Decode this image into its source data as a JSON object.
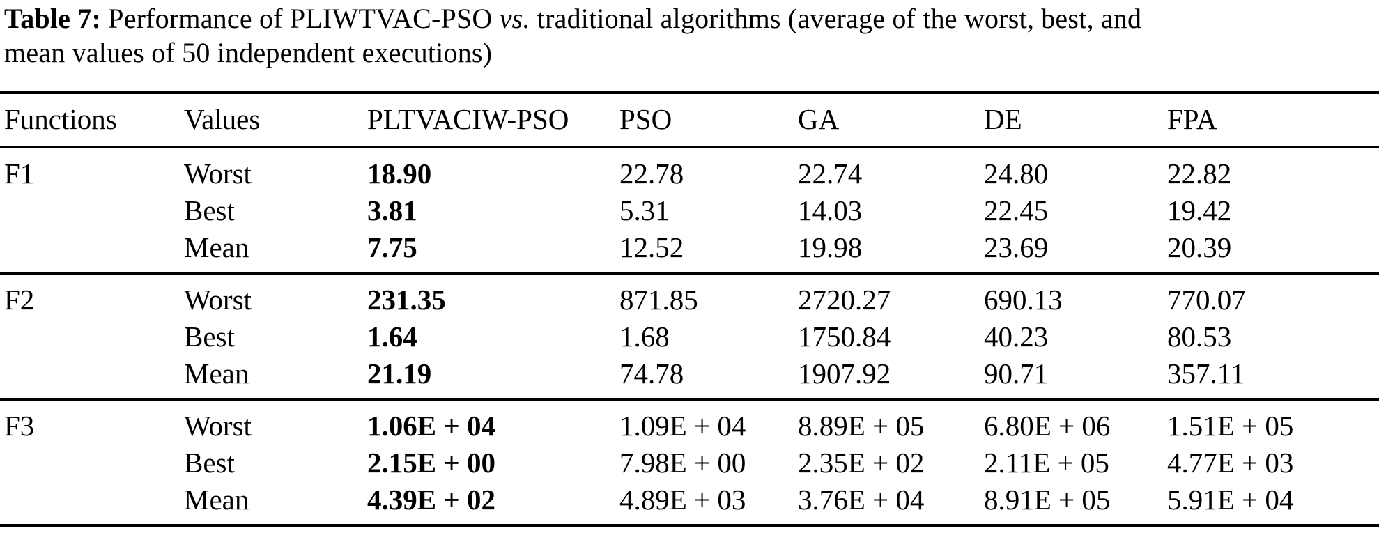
{
  "page": {
    "background_color": "#ffffff",
    "text_color": "#000000",
    "rule_color": "#000000"
  },
  "caption": {
    "segments": [
      {
        "text": "Table 7:",
        "style": "bold"
      },
      {
        "text": " Performance of PLIWTVAC-PSO ",
        "style": "normal"
      },
      {
        "text": "vs.",
        "style": "italic"
      },
      {
        "text": " traditional algorithms (average of the worst, best, and",
        "style": "normal"
      },
      {
        "style": "break"
      },
      {
        "text": "mean values of 50 independent executions)",
        "style": "normal"
      }
    ],
    "full_text": "Table 7: Performance of PLIWTVAC-PSO vs. traditional algorithms (average of the worst, best, and mean values of 50 independent executions)"
  },
  "table": {
    "columns": [
      "Functions",
      "Values",
      "PLTVACIW-PSO",
      "PSO",
      "GA",
      "DE",
      "FPA"
    ],
    "bold_column": "PLTVACIW-PSO",
    "groups": [
      {
        "function": "F1",
        "rows": [
          {
            "value_label": "Worst",
            "cells": [
              "18.90",
              "22.78",
              "22.74",
              "24.80",
              "22.82"
            ]
          },
          {
            "value_label": "Best",
            "cells": [
              "3.81",
              "5.31",
              "14.03",
              "22.45",
              "19.42"
            ]
          },
          {
            "value_label": "Mean",
            "cells": [
              "7.75",
              "12.52",
              "19.98",
              "23.69",
              "20.39"
            ]
          }
        ]
      },
      {
        "function": "F2",
        "rows": [
          {
            "value_label": "Worst",
            "cells": [
              "231.35",
              "871.85",
              "2720.27",
              "690.13",
              "770.07"
            ]
          },
          {
            "value_label": "Best",
            "cells": [
              "1.64",
              "1.68",
              "1750.84",
              "40.23",
              "80.53"
            ]
          },
          {
            "value_label": "Mean",
            "cells": [
              "21.19",
              "74.78",
              "1907.92",
              "90.71",
              "357.11"
            ]
          }
        ]
      },
      {
        "function": "F3",
        "rows": [
          {
            "value_label": "Worst",
            "cells": [
              "1.06E + 04",
              "1.09E + 04",
              "8.89E + 05",
              "6.80E + 06",
              "1.51E + 05"
            ]
          },
          {
            "value_label": "Best",
            "cells": [
              "2.15E + 00",
              "7.98E + 00",
              "2.35E + 02",
              "2.11E + 05",
              "4.77E + 03"
            ]
          },
          {
            "value_label": "Mean",
            "cells": [
              "4.39E + 02",
              "4.89E + 03",
              "3.76E + 04",
              "8.91E + 05",
              "5.91E + 04"
            ]
          }
        ]
      }
    ]
  }
}
